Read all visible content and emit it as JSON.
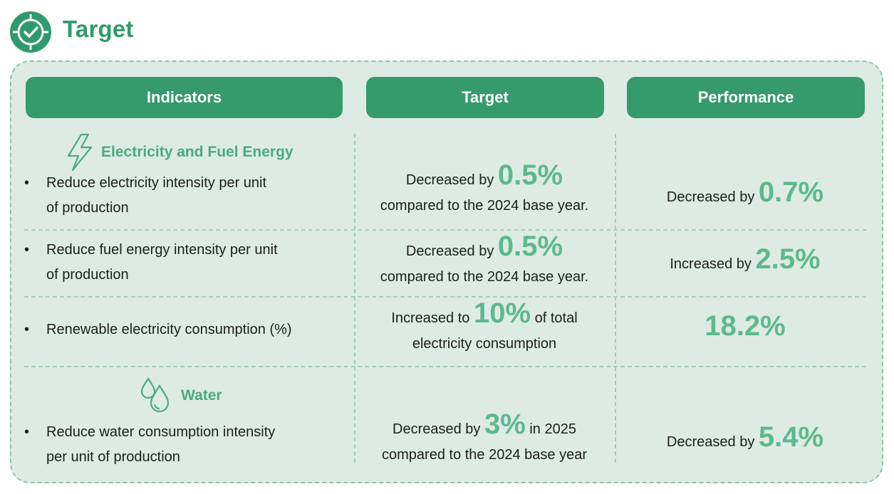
{
  "title": "Target",
  "colors": {
    "accent": "#2f9a6c",
    "header_bg": "#359a6c",
    "panel_bg": "#deebe4",
    "highlight": "#5db98d"
  },
  "icons": {
    "title": "target-check-icon",
    "energy": "lightning-icon",
    "water": "water-drops-icon"
  },
  "columns": {
    "indicators": "Indicators",
    "target": "Target",
    "performance": "Performance"
  },
  "categories": {
    "energy": "Electricity and Fuel Energy",
    "water": "Water"
  },
  "rows": [
    {
      "indicator_l1": "Reduce electricity intensity per unit",
      "indicator_l2": "of production",
      "target_pre": "Decreased by",
      "target_value": "0.5%",
      "target_post": "",
      "target_l2": "compared to the 2024 base year.",
      "perf_pre": "Decreased by",
      "perf_value": "0.7%"
    },
    {
      "indicator_l1": "Reduce fuel energy intensity per unit",
      "indicator_l2": "of production",
      "target_pre": "Decreased by",
      "target_value": "0.5%",
      "target_post": "",
      "target_l2": "compared to the 2024 base year.",
      "perf_pre": "Increased by",
      "perf_value": "2.5%"
    },
    {
      "indicator_l1": "Renewable electricity consumption (%)",
      "indicator_l2": "",
      "target_pre": "Increased to",
      "target_value": "10%",
      "target_post": "of total",
      "target_l2": "electricity consumption",
      "perf_pre": "",
      "perf_value": "18.2%"
    },
    {
      "indicator_l1": "Reduce water consumption intensity",
      "indicator_l2": "per unit of production",
      "target_pre": "Decreased by",
      "target_value": "3%",
      "target_post": "in 2025",
      "target_l2": "compared to the 2024 base year",
      "perf_pre": "Decreased by",
      "perf_value": "5.4%"
    }
  ],
  "bullet": "•"
}
